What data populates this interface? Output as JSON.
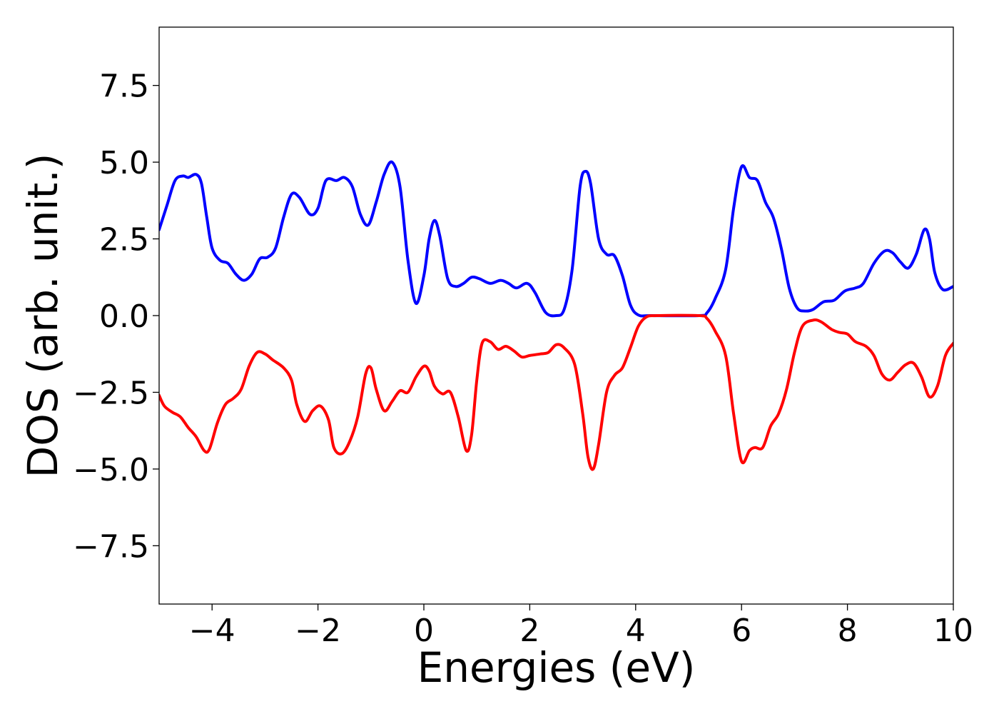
{
  "chart_data": {
    "type": "line",
    "title": "",
    "xlabel": "Energies (eV)",
    "ylabel": "DOS (arb. unit.)",
    "xlim": [
      -5,
      10
    ],
    "ylim": [
      -9.4,
      9.4
    ],
    "grid": false,
    "legend": "none",
    "x_ticks": [
      {
        "value": -4,
        "label": "−4"
      },
      {
        "value": -2,
        "label": "−2"
      },
      {
        "value": 0,
        "label": "0"
      },
      {
        "value": 2,
        "label": "2"
      },
      {
        "value": 4,
        "label": "4"
      },
      {
        "value": 6,
        "label": "6"
      },
      {
        "value": 8,
        "label": "8"
      },
      {
        "value": 10,
        "label": "10"
      }
    ],
    "y_ticks": [
      {
        "value": 7.5,
        "label": "7.5"
      },
      {
        "value": 5.0,
        "label": "5.0"
      },
      {
        "value": 2.5,
        "label": "2.5"
      },
      {
        "value": 0.0,
        "label": "0.0"
      },
      {
        "value": -2.5,
        "label": "−2.5"
      },
      {
        "value": -5.0,
        "label": "−5.0"
      },
      {
        "value": -7.5,
        "label": "−7.5"
      }
    ],
    "series": [
      {
        "color": "#0000ff",
        "points": [
          [
            -5.0,
            2.8
          ],
          [
            -4.85,
            3.6
          ],
          [
            -4.7,
            4.4
          ],
          [
            -4.55,
            4.55
          ],
          [
            -4.45,
            4.5
          ],
          [
            -4.3,
            4.6
          ],
          [
            -4.2,
            4.3
          ],
          [
            -4.1,
            3.2
          ],
          [
            -4.0,
            2.2
          ],
          [
            -3.85,
            1.8
          ],
          [
            -3.7,
            1.7
          ],
          [
            -3.55,
            1.35
          ],
          [
            -3.4,
            1.15
          ],
          [
            -3.25,
            1.35
          ],
          [
            -3.1,
            1.85
          ],
          [
            -2.95,
            1.9
          ],
          [
            -2.8,
            2.2
          ],
          [
            -2.65,
            3.2
          ],
          [
            -2.5,
            3.95
          ],
          [
            -2.35,
            3.85
          ],
          [
            -2.15,
            3.3
          ],
          [
            -2.0,
            3.5
          ],
          [
            -1.85,
            4.4
          ],
          [
            -1.65,
            4.4
          ],
          [
            -1.5,
            4.5
          ],
          [
            -1.35,
            4.2
          ],
          [
            -1.2,
            3.3
          ],
          [
            -1.05,
            2.95
          ],
          [
            -0.9,
            3.7
          ],
          [
            -0.75,
            4.6
          ],
          [
            -0.6,
            5.0
          ],
          [
            -0.45,
            4.2
          ],
          [
            -0.3,
            1.8
          ],
          [
            -0.15,
            0.4
          ],
          [
            0.0,
            1.3
          ],
          [
            0.1,
            2.5
          ],
          [
            0.2,
            3.1
          ],
          [
            0.3,
            2.6
          ],
          [
            0.45,
            1.2
          ],
          [
            0.6,
            0.95
          ],
          [
            0.75,
            1.05
          ],
          [
            0.9,
            1.25
          ],
          [
            1.05,
            1.2
          ],
          [
            1.25,
            1.05
          ],
          [
            1.45,
            1.15
          ],
          [
            1.6,
            1.05
          ],
          [
            1.75,
            0.9
          ],
          [
            1.95,
            1.05
          ],
          [
            2.1,
            0.75
          ],
          [
            2.3,
            0.1
          ],
          [
            2.5,
            0.0
          ],
          [
            2.65,
            0.2
          ],
          [
            2.8,
            1.5
          ],
          [
            2.95,
            4.2
          ],
          [
            3.05,
            4.7
          ],
          [
            3.15,
            4.3
          ],
          [
            3.3,
            2.5
          ],
          [
            3.45,
            2.0
          ],
          [
            3.6,
            1.95
          ],
          [
            3.75,
            1.3
          ],
          [
            3.9,
            0.35
          ],
          [
            4.05,
            0.02
          ],
          [
            4.3,
            0.0
          ],
          [
            5.2,
            0.0
          ],
          [
            5.35,
            0.1
          ],
          [
            5.5,
            0.55
          ],
          [
            5.7,
            1.5
          ],
          [
            5.85,
            3.5
          ],
          [
            6.0,
            4.85
          ],
          [
            6.15,
            4.5
          ],
          [
            6.3,
            4.4
          ],
          [
            6.45,
            3.7
          ],
          [
            6.6,
            3.2
          ],
          [
            6.75,
            2.2
          ],
          [
            6.9,
            0.9
          ],
          [
            7.05,
            0.25
          ],
          [
            7.2,
            0.15
          ],
          [
            7.35,
            0.2
          ],
          [
            7.55,
            0.45
          ],
          [
            7.75,
            0.5
          ],
          [
            7.95,
            0.8
          ],
          [
            8.15,
            0.9
          ],
          [
            8.3,
            1.05
          ],
          [
            8.5,
            1.7
          ],
          [
            8.7,
            2.1
          ],
          [
            8.85,
            2.05
          ],
          [
            9.0,
            1.75
          ],
          [
            9.15,
            1.55
          ],
          [
            9.3,
            2.0
          ],
          [
            9.45,
            2.8
          ],
          [
            9.55,
            2.5
          ],
          [
            9.65,
            1.4
          ],
          [
            9.8,
            0.85
          ],
          [
            10.0,
            0.95
          ]
        ]
      },
      {
        "color": "#ff0000",
        "points": [
          [
            -5.0,
            -2.6
          ],
          [
            -4.9,
            -2.95
          ],
          [
            -4.75,
            -3.15
          ],
          [
            -4.6,
            -3.3
          ],
          [
            -4.45,
            -3.65
          ],
          [
            -4.3,
            -3.95
          ],
          [
            -4.15,
            -4.4
          ],
          [
            -4.05,
            -4.35
          ],
          [
            -3.9,
            -3.5
          ],
          [
            -3.75,
            -2.9
          ],
          [
            -3.6,
            -2.7
          ],
          [
            -3.45,
            -2.4
          ],
          [
            -3.3,
            -1.65
          ],
          [
            -3.15,
            -1.2
          ],
          [
            -3.0,
            -1.25
          ],
          [
            -2.85,
            -1.45
          ],
          [
            -2.65,
            -1.7
          ],
          [
            -2.5,
            -2.1
          ],
          [
            -2.4,
            -2.9
          ],
          [
            -2.25,
            -3.45
          ],
          [
            -2.1,
            -3.1
          ],
          [
            -1.95,
            -2.95
          ],
          [
            -1.8,
            -3.4
          ],
          [
            -1.7,
            -4.3
          ],
          [
            -1.55,
            -4.5
          ],
          [
            -1.4,
            -4.1
          ],
          [
            -1.25,
            -3.3
          ],
          [
            -1.1,
            -1.9
          ],
          [
            -1.0,
            -1.7
          ],
          [
            -0.9,
            -2.4
          ],
          [
            -0.75,
            -3.1
          ],
          [
            -0.6,
            -2.8
          ],
          [
            -0.45,
            -2.45
          ],
          [
            -0.3,
            -2.5
          ],
          [
            -0.15,
            -2.0
          ],
          [
            0.0,
            -1.65
          ],
          [
            0.1,
            -1.8
          ],
          [
            0.2,
            -2.3
          ],
          [
            0.35,
            -2.55
          ],
          [
            0.5,
            -2.5
          ],
          [
            0.65,
            -3.3
          ],
          [
            0.8,
            -4.4
          ],
          [
            0.9,
            -3.9
          ],
          [
            1.0,
            -2.1
          ],
          [
            1.1,
            -0.9
          ],
          [
            1.25,
            -0.85
          ],
          [
            1.4,
            -1.1
          ],
          [
            1.55,
            -1.0
          ],
          [
            1.7,
            -1.15
          ],
          [
            1.85,
            -1.35
          ],
          [
            2.0,
            -1.3
          ],
          [
            2.2,
            -1.25
          ],
          [
            2.35,
            -1.2
          ],
          [
            2.5,
            -0.95
          ],
          [
            2.65,
            -1.05
          ],
          [
            2.85,
            -1.6
          ],
          [
            3.0,
            -3.2
          ],
          [
            3.1,
            -4.6
          ],
          [
            3.2,
            -5.0
          ],
          [
            3.3,
            -4.2
          ],
          [
            3.45,
            -2.5
          ],
          [
            3.6,
            -1.95
          ],
          [
            3.75,
            -1.7
          ],
          [
            3.9,
            -1.05
          ],
          [
            4.05,
            -0.35
          ],
          [
            4.2,
            -0.05
          ],
          [
            4.4,
            0.0
          ],
          [
            5.2,
            0.0
          ],
          [
            5.35,
            -0.1
          ],
          [
            5.5,
            -0.5
          ],
          [
            5.7,
            -1.3
          ],
          [
            5.85,
            -3.2
          ],
          [
            6.0,
            -4.75
          ],
          [
            6.15,
            -4.4
          ],
          [
            6.25,
            -4.3
          ],
          [
            6.4,
            -4.3
          ],
          [
            6.55,
            -3.6
          ],
          [
            6.7,
            -3.2
          ],
          [
            6.85,
            -2.4
          ],
          [
            7.0,
            -1.2
          ],
          [
            7.15,
            -0.35
          ],
          [
            7.35,
            -0.15
          ],
          [
            7.5,
            -0.2
          ],
          [
            7.7,
            -0.45
          ],
          [
            7.85,
            -0.55
          ],
          [
            8.0,
            -0.6
          ],
          [
            8.15,
            -0.85
          ],
          [
            8.35,
            -1.0
          ],
          [
            8.5,
            -1.3
          ],
          [
            8.65,
            -1.9
          ],
          [
            8.8,
            -2.1
          ],
          [
            8.95,
            -1.85
          ],
          [
            9.1,
            -1.6
          ],
          [
            9.25,
            -1.55
          ],
          [
            9.4,
            -2.0
          ],
          [
            9.55,
            -2.65
          ],
          [
            9.7,
            -2.3
          ],
          [
            9.85,
            -1.3
          ],
          [
            10.0,
            -0.9
          ]
        ]
      }
    ]
  }
}
